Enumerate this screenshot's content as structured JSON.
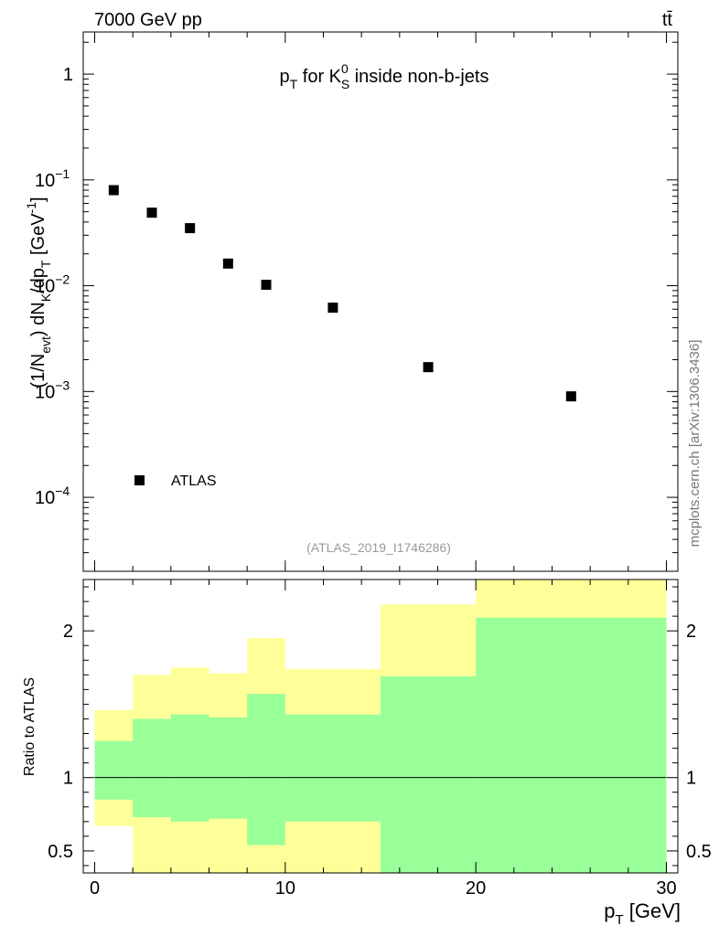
{
  "header": {
    "energy_label": "7000 GeV pp",
    "process_label": "tt̄",
    "watermark": "mcplots.cern.ch [arXiv:1306.3436]"
  },
  "chart_data": [
    {
      "type": "scatter",
      "title": "p_T for K_S^0 inside non-b-jets",
      "title_parts": {
        "p": "p",
        "p_sub": "T",
        "for": " for K",
        "k_sup": "0",
        "k_sub": "S",
        "rest": " inside non-b-jets"
      },
      "ylabel": "(1/N_evt) dN_K/dp_T [GeV^-1]",
      "ylabel_parts": {
        "a": "(1/N",
        "a_sub": "evt",
        "b": ") dN",
        "b_sub": "K",
        "c": "/dp",
        "c_sub": "T",
        "d": " [GeV",
        "d_sup": "-1",
        "e": "]"
      },
      "yscale": "log",
      "ylim": [
        2e-05,
        2.5
      ],
      "xlim": [
        -0.6,
        30.6
      ],
      "yticks_major": [
        {
          "value": 1,
          "label": "1"
        },
        {
          "value": 0.1,
          "label": "10",
          "exp": "−1"
        },
        {
          "value": 0.01,
          "label": "10",
          "exp": "−2"
        },
        {
          "value": 0.001,
          "label": "10",
          "exp": "−3"
        },
        {
          "value": 0.0001,
          "label": "10",
          "exp": "−4"
        }
      ],
      "series": [
        {
          "name": "ATLAS",
          "x": [
            1,
            3,
            5,
            7,
            9,
            12.5,
            17.5,
            25
          ],
          "y": [
            0.08,
            0.049,
            0.035,
            0.0162,
            0.0102,
            0.0062,
            0.0017,
            0.0009
          ]
        }
      ],
      "legend": {
        "entries": [
          "ATLAS"
        ],
        "position": "bottom-left"
      },
      "annotation": "(ATLAS_2019_I1746286)"
    },
    {
      "type": "area",
      "ylabel": "Ratio to ATLAS",
      "xlabel": "p_T [GeV]",
      "xlabel_parts": {
        "p": "p",
        "p_sub": "T",
        "unit": " [GeV]"
      },
      "ylim": [
        0.35,
        2.35
      ],
      "xlim": [
        -0.6,
        30.6
      ],
      "xticks": [
        0,
        10,
        20,
        30
      ],
      "yticks": [
        0.5,
        1,
        2
      ],
      "reference_line": 1,
      "bins": [
        {
          "x0": 0,
          "x1": 2,
          "inner_lo": 0.85,
          "inner_hi": 1.25,
          "outer_lo": 0.67,
          "outer_hi": 1.46
        },
        {
          "x0": 2,
          "x1": 4,
          "inner_lo": 0.73,
          "inner_hi": 1.4,
          "outer_lo": 0.35,
          "outer_hi": 1.7
        },
        {
          "x0": 4,
          "x1": 6,
          "inner_lo": 0.7,
          "inner_hi": 1.43,
          "outer_lo": 0.35,
          "outer_hi": 1.75
        },
        {
          "x0": 6,
          "x1": 8,
          "inner_lo": 0.72,
          "inner_hi": 1.41,
          "outer_lo": 0.35,
          "outer_hi": 1.71
        },
        {
          "x0": 8,
          "x1": 10,
          "inner_lo": 0.54,
          "inner_hi": 1.57,
          "outer_lo": 0.35,
          "outer_hi": 1.95
        },
        {
          "x0": 10,
          "x1": 15,
          "inner_lo": 0.7,
          "inner_hi": 1.43,
          "outer_lo": 0.35,
          "outer_hi": 1.74
        },
        {
          "x0": 15,
          "x1": 20,
          "inner_lo": 0.35,
          "inner_hi": 1.69,
          "outer_lo": 0.35,
          "outer_hi": 2.18
        },
        {
          "x0": 20,
          "x1": 30,
          "inner_lo": 0.35,
          "inner_hi": 2.09,
          "outer_lo": 0.35,
          "outer_hi": 2.35
        }
      ],
      "colors": {
        "inner_band": "#99ff99",
        "outer_band": "#ffff99"
      }
    }
  ]
}
